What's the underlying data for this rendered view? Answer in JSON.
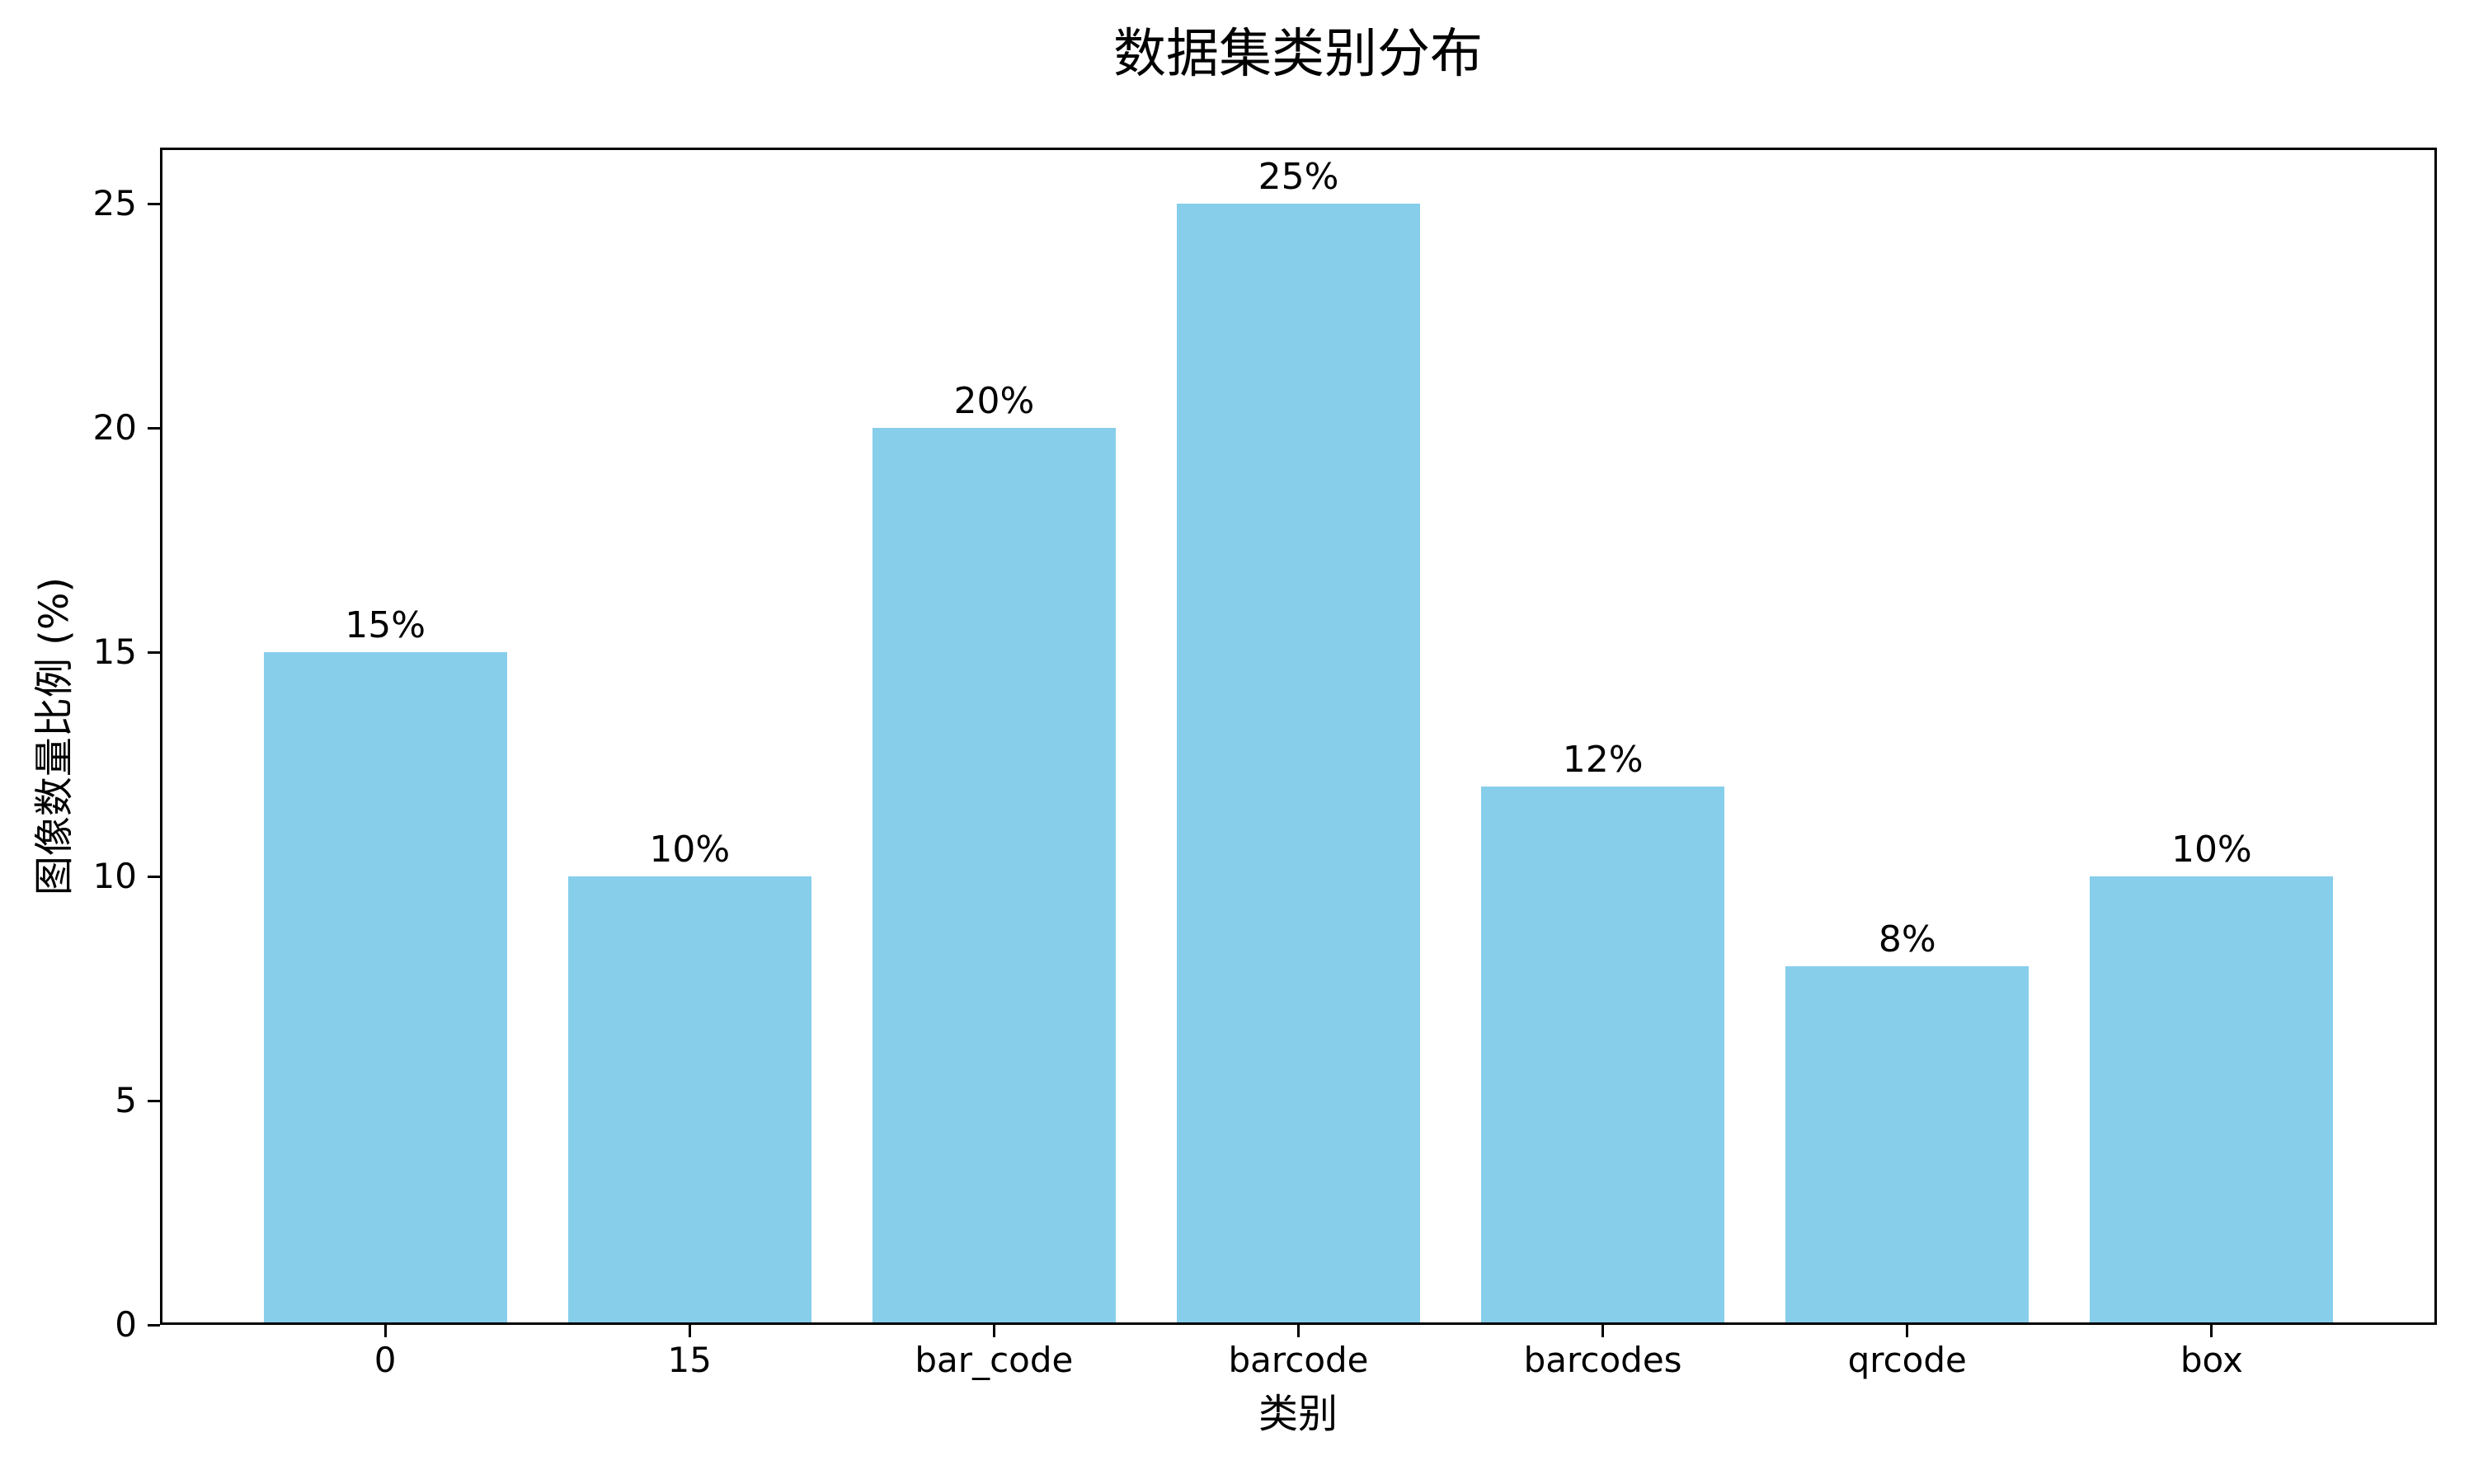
{
  "figure": {
    "background_color": "#ffffff",
    "text_color": "#000000"
  },
  "chart_data": {
    "type": "bar",
    "title": "数据集类别分布",
    "xlabel": "类别",
    "ylabel": "图像数量比例 (%)",
    "categories": [
      "0",
      "15",
      "bar_code",
      "barcode",
      "barcodes",
      "qrcode",
      "box"
    ],
    "values": [
      15,
      10,
      20,
      25,
      12,
      8,
      10
    ],
    "bar_value_labels": [
      "15%",
      "10%",
      "20%",
      "25%",
      "12%",
      "8%",
      "10%"
    ],
    "y_ticks": [
      0,
      5,
      10,
      15,
      20,
      25
    ],
    "ylim": [
      0,
      26.25
    ],
    "bar_color": "#87CEEB",
    "spine_color": "#000000",
    "grid": false,
    "legend": "none",
    "bar_width_fraction": 0.8,
    "x_edge_margin_units": 0.74
  }
}
